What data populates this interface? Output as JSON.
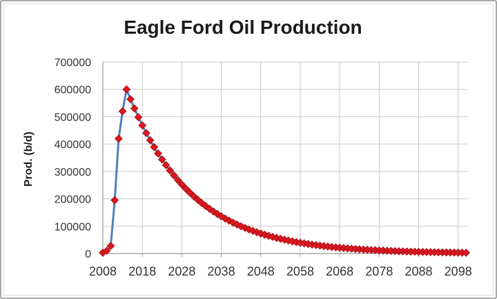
{
  "frame": {
    "background": "#ffffff",
    "border_color": "#a8a8a8",
    "inner_border_color": "#dcdcdc"
  },
  "chart_data": {
    "type": "line",
    "title": "Eagle Ford Oil Production",
    "xlabel": "",
    "ylabel": "Prod. (b/d)",
    "legend_position": "none",
    "grid": true,
    "grid_color": "#c8c8c8",
    "axis_color": "#999999",
    "tick_label_color": "#333333",
    "xlim": [
      2008,
      2100.5
    ],
    "ylim": [
      0,
      700000
    ],
    "x_ticks": [
      2008,
      2018,
      2028,
      2038,
      2048,
      2058,
      2068,
      2078,
      2088,
      2098
    ],
    "y_ticks": [
      0,
      100000,
      200000,
      300000,
      400000,
      500000,
      600000,
      700000
    ],
    "x_start": 2008,
    "x_step": 1,
    "x_end": 2100,
    "series": [
      {
        "line_color": "#4e7fbb",
        "line_width": 3,
        "marker": "diamond",
        "marker_color": "#dd1820",
        "marker_edge_color": "#a81016",
        "values": [
          3000,
          10000,
          28000,
          195000,
          420000,
          520000,
          600000,
          564000,
          530200,
          498400,
          468400,
          440300,
          413900,
          389100,
          365700,
          343800,
          323200,
          303800,
          285600,
          268400,
          252300,
          237200,
          222900,
          209600,
          197000,
          185200,
          174100,
          163600,
          153800,
          144600,
          135900,
          127700,
          120100,
          112900,
          106100,
          99700,
          93800,
          88100,
          82800,
          77900,
          73200,
          68800,
          64700,
          60800,
          57100,
          53700,
          50500,
          47500,
          44600,
          41900,
          39400,
          37100,
          34800,
          32700,
          30800,
          28900,
          27200,
          25600,
          24000,
          22600,
          21200,
          20000,
          18800,
          17600,
          16600,
          15600,
          14600,
          13800,
          12900,
          12200,
          11400,
          10800,
          10100,
          9500,
          8900,
          8400,
          7900,
          7400,
          7000,
          6600,
          6200,
          5800,
          5400,
          5100,
          4800,
          4500,
          4200,
          4000,
          3800,
          3500,
          3300,
          3100,
          2900
        ]
      }
    ]
  }
}
